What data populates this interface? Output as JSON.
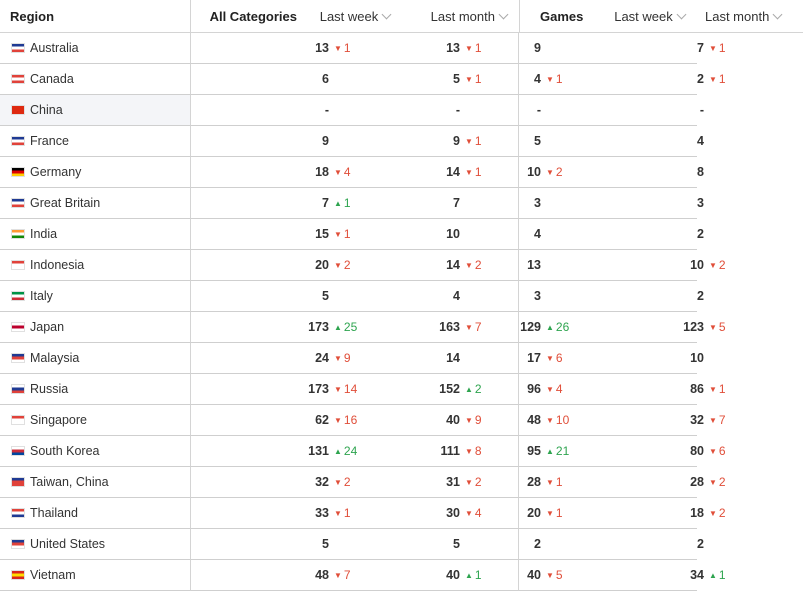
{
  "headers": {
    "region": "Region",
    "all_categories": "All Categories",
    "last_week": "Last week",
    "last_month": "Last month",
    "games": "Games"
  },
  "rows": [
    {
      "region": "Australia",
      "flag": "flag-australia-icon",
      "flag_colors": [
        "#1f3a93",
        "#ffffff",
        "#e0423a"
      ],
      "all_week": "13",
      "all_week_chg": "1",
      "all_week_dir": "down",
      "all_month": "13",
      "all_month_chg": "1",
      "all_month_dir": "down",
      "games_week": "9",
      "games_week_chg": "",
      "games_week_dir": "",
      "games_month": "7",
      "games_month_chg": "1",
      "games_month_dir": "down"
    },
    {
      "region": "Canada",
      "flag": "flag-canada-icon",
      "flag_colors": [
        "#e0423a",
        "#ffffff",
        "#e0423a"
      ],
      "all_week": "6",
      "all_week_chg": "",
      "all_week_dir": "",
      "all_month": "5",
      "all_month_chg": "1",
      "all_month_dir": "down",
      "games_week": "4",
      "games_week_chg": "1",
      "games_week_dir": "down",
      "games_month": "2",
      "games_month_chg": "1",
      "games_month_dir": "down"
    },
    {
      "region": "China",
      "flag": "flag-china-icon",
      "flag_colors": [
        "#de2910",
        "#de2910",
        "#de2910"
      ],
      "all_week": "-",
      "all_week_chg": "",
      "all_week_dir": "",
      "all_month": "-",
      "all_month_chg": "",
      "all_month_dir": "",
      "games_week": "-",
      "games_week_chg": "",
      "games_week_dir": "",
      "games_month": "-",
      "games_month_chg": "",
      "games_month_dir": ""
    },
    {
      "region": "France",
      "flag": "flag-france-icon",
      "flag_colors": [
        "#1f3a93",
        "#ffffff",
        "#e0423a"
      ],
      "all_week": "9",
      "all_week_chg": "",
      "all_week_dir": "",
      "all_month": "9",
      "all_month_chg": "1",
      "all_month_dir": "down",
      "games_week": "5",
      "games_week_chg": "",
      "games_week_dir": "",
      "games_month": "4",
      "games_month_chg": "",
      "games_month_dir": ""
    },
    {
      "region": "Germany",
      "flag": "flag-germany-icon",
      "flag_colors": [
        "#000000",
        "#dd0000",
        "#ffce00"
      ],
      "all_week": "18",
      "all_week_chg": "4",
      "all_week_dir": "down",
      "all_month": "14",
      "all_month_chg": "1",
      "all_month_dir": "down",
      "games_week": "10",
      "games_week_chg": "2",
      "games_week_dir": "down",
      "games_month": "8",
      "games_month_chg": "",
      "games_month_dir": ""
    },
    {
      "region": "Great Britain",
      "flag": "flag-great-britain-icon",
      "flag_colors": [
        "#1f3a93",
        "#ffffff",
        "#e0423a"
      ],
      "all_week": "7",
      "all_week_chg": "1",
      "all_week_dir": "up",
      "all_month": "7",
      "all_month_chg": "",
      "all_month_dir": "",
      "games_week": "3",
      "games_week_chg": "",
      "games_week_dir": "",
      "games_month": "3",
      "games_month_chg": "",
      "games_month_dir": ""
    },
    {
      "region": "India",
      "flag": "flag-india-icon",
      "flag_colors": [
        "#ff9933",
        "#ffffff",
        "#138808"
      ],
      "all_week": "15",
      "all_week_chg": "1",
      "all_week_dir": "down",
      "all_month": "10",
      "all_month_chg": "",
      "all_month_dir": "",
      "games_week": "4",
      "games_week_chg": "",
      "games_week_dir": "",
      "games_month": "2",
      "games_month_chg": "",
      "games_month_dir": ""
    },
    {
      "region": "Indonesia",
      "flag": "flag-indonesia-icon",
      "flag_colors": [
        "#e0423a",
        "#ffffff",
        "#ffffff"
      ],
      "all_week": "20",
      "all_week_chg": "2",
      "all_week_dir": "down",
      "all_month": "14",
      "all_month_chg": "2",
      "all_month_dir": "down",
      "games_week": "13",
      "games_week_chg": "",
      "games_week_dir": "",
      "games_month": "10",
      "games_month_chg": "2",
      "games_month_dir": "down"
    },
    {
      "region": "Italy",
      "flag": "flag-italy-icon",
      "flag_colors": [
        "#009246",
        "#ffffff",
        "#ce2b37"
      ],
      "all_week": "5",
      "all_week_chg": "",
      "all_week_dir": "",
      "all_month": "4",
      "all_month_chg": "",
      "all_month_dir": "",
      "games_week": "3",
      "games_week_chg": "",
      "games_week_dir": "",
      "games_month": "2",
      "games_month_chg": "",
      "games_month_dir": ""
    },
    {
      "region": "Japan",
      "flag": "flag-japan-icon",
      "flag_colors": [
        "#ffffff",
        "#bc002d",
        "#ffffff"
      ],
      "all_week": "173",
      "all_week_chg": "25",
      "all_week_dir": "up",
      "all_month": "163",
      "all_month_chg": "7",
      "all_month_dir": "down",
      "games_week": "129",
      "games_week_chg": "26",
      "games_week_dir": "up",
      "games_month": "123",
      "games_month_chg": "5",
      "games_month_dir": "down"
    },
    {
      "region": "Malaysia",
      "flag": "flag-malaysia-icon",
      "flag_colors": [
        "#1f3a93",
        "#e0423a",
        "#ffffff"
      ],
      "all_week": "24",
      "all_week_chg": "9",
      "all_week_dir": "down",
      "all_month": "14",
      "all_month_chg": "",
      "all_month_dir": "",
      "games_week": "17",
      "games_week_chg": "6",
      "games_week_dir": "down",
      "games_month": "10",
      "games_month_chg": "",
      "games_month_dir": ""
    },
    {
      "region": "Russia",
      "flag": "flag-russia-icon",
      "flag_colors": [
        "#ffffff",
        "#1f3a93",
        "#e0423a"
      ],
      "all_week": "173",
      "all_week_chg": "14",
      "all_week_dir": "down",
      "all_month": "152",
      "all_month_chg": "2",
      "all_month_dir": "up",
      "games_week": "96",
      "games_week_chg": "4",
      "games_week_dir": "down",
      "games_month": "86",
      "games_month_chg": "1",
      "games_month_dir": "down"
    },
    {
      "region": "Singapore",
      "flag": "flag-singapore-icon",
      "flag_colors": [
        "#e0423a",
        "#ffffff",
        "#ffffff"
      ],
      "all_week": "62",
      "all_week_chg": "16",
      "all_week_dir": "down",
      "all_month": "40",
      "all_month_chg": "9",
      "all_month_dir": "down",
      "games_week": "48",
      "games_week_chg": "10",
      "games_week_dir": "down",
      "games_month": "32",
      "games_month_chg": "7",
      "games_month_dir": "down"
    },
    {
      "region": "South Korea",
      "flag": "flag-south-korea-icon",
      "flag_colors": [
        "#ffffff",
        "#cd2e3a",
        "#0047a0"
      ],
      "all_week": "131",
      "all_week_chg": "24",
      "all_week_dir": "up",
      "all_month": "111",
      "all_month_chg": "8",
      "all_month_dir": "down",
      "games_week": "95",
      "games_week_chg": "21",
      "games_week_dir": "up",
      "games_month": "80",
      "games_month_chg": "6",
      "games_month_dir": "down"
    },
    {
      "region": "Taiwan, China",
      "flag": "flag-taiwan-icon",
      "flag_colors": [
        "#1f3a93",
        "#e0423a",
        "#e0423a"
      ],
      "all_week": "32",
      "all_week_chg": "2",
      "all_week_dir": "down",
      "all_month": "31",
      "all_month_chg": "2",
      "all_month_dir": "down",
      "games_week": "28",
      "games_week_chg": "1",
      "games_week_dir": "down",
      "games_month": "28",
      "games_month_chg": "2",
      "games_month_dir": "down"
    },
    {
      "region": "Thailand",
      "flag": "flag-thailand-icon",
      "flag_colors": [
        "#e0423a",
        "#ffffff",
        "#1f3a93"
      ],
      "all_week": "33",
      "all_week_chg": "1",
      "all_week_dir": "down",
      "all_month": "30",
      "all_month_chg": "4",
      "all_month_dir": "down",
      "games_week": "20",
      "games_week_chg": "1",
      "games_week_dir": "down",
      "games_month": "18",
      "games_month_chg": "2",
      "games_month_dir": "down"
    },
    {
      "region": "United States",
      "flag": "flag-united-states-icon",
      "flag_colors": [
        "#1f3a93",
        "#e0423a",
        "#ffffff"
      ],
      "all_week": "5",
      "all_week_chg": "",
      "all_week_dir": "",
      "all_month": "5",
      "all_month_chg": "",
      "all_month_dir": "",
      "games_week": "2",
      "games_week_chg": "",
      "games_week_dir": "",
      "games_month": "2",
      "games_month_chg": "",
      "games_month_dir": ""
    },
    {
      "region": "Vietnam",
      "flag": "flag-vietnam-icon",
      "flag_colors": [
        "#da251d",
        "#ffdd00",
        "#da251d"
      ],
      "all_week": "48",
      "all_week_chg": "7",
      "all_week_dir": "down",
      "all_month": "40",
      "all_month_chg": "1",
      "all_month_dir": "up",
      "games_week": "40",
      "games_week_chg": "5",
      "games_week_dir": "down",
      "games_month": "34",
      "games_month_chg": "1",
      "games_month_dir": "up"
    }
  ],
  "colors": {
    "down": "#e04e39",
    "up": "#2ea44f",
    "border": "#d4d4d4",
    "hover_row": "#f4f5f8"
  }
}
